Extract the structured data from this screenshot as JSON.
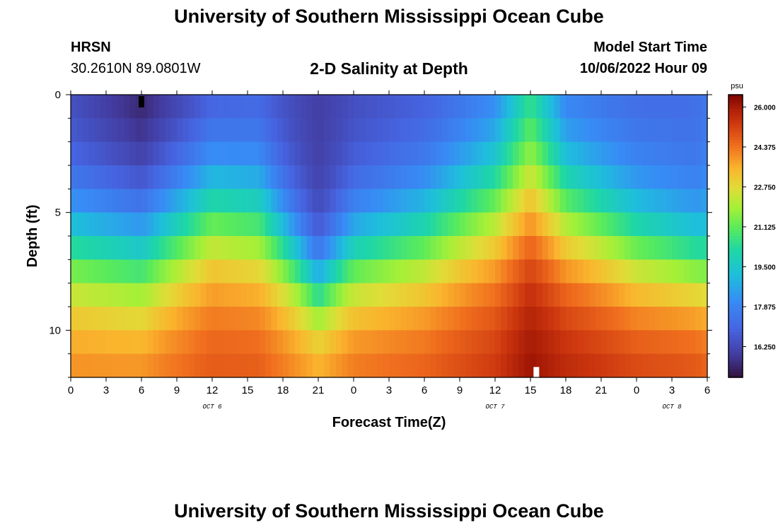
{
  "header": {
    "title": "University of Southern Mississippi Ocean Cube",
    "station": "HRSN",
    "coordinates": "30.2610N  89.0801W",
    "chart_title": "2-D Salinity at Depth",
    "model_start_label": "Model Start Time",
    "model_start_value": "10/06/2022 Hour 09"
  },
  "footer": {
    "title": "University of Southern Mississippi Ocean Cube"
  },
  "chart_data": {
    "type": "heatmap",
    "title": "2-D Salinity at Depth",
    "xlabel": "Forecast Time(Z)",
    "ylabel": "Depth (ft)",
    "x_tick_labels": [
      "0",
      "3",
      "6",
      "9",
      "12",
      "15",
      "18",
      "21",
      "0",
      "3",
      "6",
      "9",
      "12",
      "15",
      "18",
      "21",
      "0",
      "3",
      "6"
    ],
    "x_tick_hours": [
      0,
      3,
      6,
      9,
      12,
      15,
      18,
      21,
      24,
      27,
      30,
      33,
      36,
      39,
      42,
      45,
      48,
      51,
      54
    ],
    "x_range_hours": [
      0,
      54
    ],
    "day_labels": [
      {
        "label": "OCT 6",
        "hour": 12
      },
      {
        "label": "OCT 7",
        "hour": 36
      },
      {
        "label": "OCT 8",
        "hour": 51
      }
    ],
    "y_tick_labels": [
      "0",
      "5",
      "10"
    ],
    "y_tick_values": [
      0,
      5,
      10
    ],
    "y_range_ft": [
      0,
      12
    ],
    "depth_levels_ft": [
      0.5,
      1.5,
      2.5,
      3.5,
      4.5,
      5.5,
      6.5,
      7.5,
      8.5,
      9.5,
      10.5,
      11.5
    ],
    "colorbar": {
      "unit": "psu",
      "range": [
        15.0,
        26.5
      ],
      "tick_labels": [
        "26.000",
        "24.375",
        "22.750",
        "21.125",
        "19.500",
        "17.875",
        "16.250"
      ],
      "tick_values": [
        26.0,
        24.375,
        22.75,
        21.125,
        19.5,
        17.875,
        16.25
      ]
    },
    "keyframes": {
      "hours": [
        0,
        6,
        12,
        16,
        21,
        24,
        30,
        36,
        39,
        42,
        48,
        53,
        54
      ],
      "top_salinity_psu": [
        16.2,
        15.2,
        16.3,
        16.6,
        16.0,
        16.3,
        16.6,
        17.2,
        19.3,
        17.1,
        17.0,
        17.2,
        17.5
      ],
      "bottom_salinity_psu": [
        24.4,
        24.6,
        25.0,
        25.0,
        24.0,
        24.7,
        25.0,
        25.6,
        26.4,
        26.0,
        25.5,
        25.2,
        25.0
      ],
      "halocline_center_ft": [
        6.5,
        6.8,
        5.0,
        5.5,
        8.3,
        7.0,
        6.2,
        4.7,
        4.0,
        5.0,
        6.5,
        7.2,
        7.3
      ],
      "halocline_width_ft": [
        1.8,
        1.9,
        1.9,
        1.9,
        1.2,
        1.6,
        1.8,
        2.1,
        2.3,
        2.1,
        1.8,
        1.5,
        1.5
      ]
    },
    "markers": [
      {
        "type": "minimum",
        "hour": 6,
        "depth_ft": 0.3,
        "color": "#000000"
      },
      {
        "type": "maximum",
        "hour": 39.5,
        "depth_ft": 11.8,
        "color": "#ffffff"
      }
    ]
  }
}
